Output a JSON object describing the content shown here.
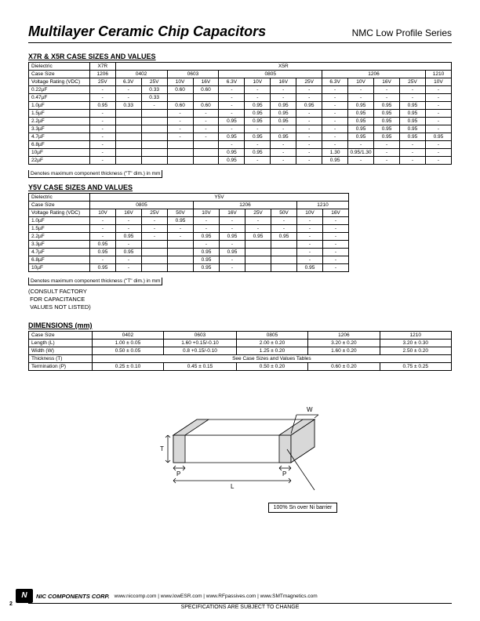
{
  "header": {
    "title": "Multilayer Ceramic Chip Capacitors",
    "series": "NMC Low Profile Series"
  },
  "x7r": {
    "title": "X7R & X5R CASE SIZES AND VALUES",
    "denote": "Denotes maximum component thickness (\"T\" dim.) in mm",
    "row_dielectric_label": "Dielectric",
    "row_case_label": "Case Size",
    "row_voltage_label": "Voltage Rating (VDC)",
    "dielectrics": [
      "X7R",
      "X5R"
    ],
    "case_sizes": [
      "1206",
      "0402",
      "0603",
      "0805",
      "1206",
      "1210"
    ],
    "voltages": [
      "25V",
      "6.3V",
      "25V",
      "10V",
      "16V",
      "6.3V",
      "10V",
      "16V",
      "25V",
      "6.3V",
      "10V",
      "16V",
      "25V",
      "10V"
    ],
    "rows": [
      {
        "cap": "0.22µF",
        "v": [
          "-",
          "-",
          "0.33",
          "0.60",
          "0.60",
          "-",
          "-",
          "-",
          "-",
          "-",
          "-",
          "-",
          "-",
          "-"
        ]
      },
      {
        "cap": "0.47µF",
        "v": [
          "-",
          "-",
          "0.33",
          "",
          "",
          "-",
          "-",
          "-",
          "-",
          "-",
          "-",
          "-",
          "-",
          "-"
        ]
      },
      {
        "cap": "1.0µF",
        "v": [
          "0.95",
          "0.33",
          "-",
          "0.60",
          "0.60",
          "-",
          "0.95",
          "0.95",
          "0.95",
          "-",
          "0.95",
          "0.95",
          "0.95",
          "-"
        ]
      },
      {
        "cap": "1.5µF",
        "v": [
          "-",
          "",
          "",
          "-",
          "-",
          "-",
          "0.95",
          "0.95",
          "-",
          "-",
          "0.95",
          "0.95",
          "0.95",
          "-"
        ]
      },
      {
        "cap": "2.2µF",
        "v": [
          "-",
          "",
          "",
          "-",
          "-",
          "0.95",
          "0.95",
          "0.95",
          "-",
          "-",
          "0.95",
          "0.95",
          "0.95",
          "-"
        ]
      },
      {
        "cap": "3.3µF",
        "v": [
          "-",
          "",
          "",
          "-",
          "-",
          "-",
          "-",
          "-",
          "-",
          "-",
          "0.95",
          "0.95",
          "0.95",
          "-"
        ]
      },
      {
        "cap": "4.7µF",
        "v": [
          "-",
          "",
          "",
          "-",
          "-",
          "0.95",
          "0.95",
          "0.95",
          "-",
          "-",
          "0.95",
          "0.95",
          "0.95",
          "0.95"
        ]
      },
      {
        "cap": "6.8µF",
        "v": [
          "-",
          "",
          "",
          "",
          "",
          "-",
          "-",
          "-",
          "-",
          "-",
          "-",
          "-",
          "-",
          "-"
        ]
      },
      {
        "cap": "10µF",
        "v": [
          "-",
          "",
          "",
          "",
          "",
          "0.95",
          "0.95",
          "-",
          "-",
          "1.30",
          "0.95/1.30",
          "-",
          "-",
          "-"
        ]
      },
      {
        "cap": "22µF",
        "v": [
          "-",
          "",
          "",
          "",
          "",
          "0.95",
          "-",
          "-",
          "-",
          "0.95",
          "-",
          "-",
          "-",
          "-"
        ]
      }
    ]
  },
  "y5v": {
    "title": "Y5V CASE SIZES AND VALUES",
    "denote": "Denotes maximum component thickness (\"T\" dim.) in mm",
    "note1": "(CONSULT FACTORY",
    "note2": "FOR CAPACITANCE",
    "note3": "VALUES NOT LISTED)",
    "row_dielectric_label": "Dielectric",
    "row_case_label": "Case Size",
    "row_voltage_label": "Voltage Rating (VDC)",
    "dielectric": "Y5V",
    "case_sizes": [
      "0805",
      "1206",
      "1210"
    ],
    "voltages": [
      "10V",
      "16V",
      "25V",
      "50V",
      "10V",
      "16V",
      "25V",
      "50V",
      "10V",
      "16V"
    ],
    "rows": [
      {
        "cap": "1.0µF",
        "v": [
          "-",
          "-",
          "-",
          "0.95",
          "-",
          "-",
          "-",
          "-",
          "-",
          "-"
        ]
      },
      {
        "cap": "1.5µF",
        "v": [
          "-",
          "-",
          "-",
          "-",
          "-",
          "-",
          "-",
          "-",
          "-",
          "-"
        ]
      },
      {
        "cap": "2.2µF",
        "v": [
          "-",
          "0.95",
          "-",
          "-",
          "0.95",
          "0.95",
          "0.95",
          "0.95",
          "-",
          "-"
        ]
      },
      {
        "cap": "3.3µF",
        "v": [
          "0.95",
          "-",
          "",
          "",
          "-",
          "-",
          "",
          "",
          "-",
          "-"
        ]
      },
      {
        "cap": "4.7µF",
        "v": [
          "0.95",
          "0.95",
          "",
          "",
          "0.95",
          "0.95",
          "",
          "",
          "-",
          "-"
        ]
      },
      {
        "cap": "6.8µF",
        "v": [
          "-",
          "-",
          "",
          "",
          "0.95",
          "-",
          "",
          "",
          "-",
          "-"
        ]
      },
      {
        "cap": "10µF",
        "v": [
          "0.95",
          "-",
          "",
          "",
          "0.95",
          "-",
          "",
          "",
          "0.95",
          "-"
        ]
      }
    ]
  },
  "dims": {
    "title": "DIMENSIONS (mm)",
    "headers": [
      "Case Size",
      "0402",
      "0603",
      "0805",
      "1206",
      "1210"
    ],
    "rows": [
      {
        "label": "Length (L)",
        "v": [
          "1.00 ± 0.05",
          "1.60 +0.15/-0.10",
          "2.00 ± 0.20",
          "3.20 ± 0.20",
          "3.20 ± 0.30"
        ]
      },
      {
        "label": "Width (W)",
        "v": [
          "0.50 ± 0.05",
          "0.8 +0.15/-0.10",
          "1.25 ± 0.20",
          "1.60 ± 0.20",
          "2.50 ± 0.20"
        ]
      },
      {
        "label": "Thickness (T)",
        "span": "See Case Sizes and Values Tables"
      },
      {
        "label": "Termination (P)",
        "v": [
          "0.25 ± 0.10",
          "0.45 ± 0.15",
          "0.50 ± 0.20",
          "0.60 ± 0.20",
          "0.75 ± 0.25"
        ]
      }
    ]
  },
  "diagram": {
    "callout": "100% Sn over Ni barrier",
    "labels": {
      "W": "W",
      "T": "T",
      "L": "L",
      "P": "P"
    }
  },
  "footer": {
    "corp": "NIC COMPONENTS CORP.",
    "urls": "www.niccomp.com   |   www.lowESR.com   |   www.RFpassives.com   |   www.SMTmagnetics.com",
    "spec": "SPECIFICATIONS ARE SUBJECT TO CHANGE",
    "page": "2"
  }
}
